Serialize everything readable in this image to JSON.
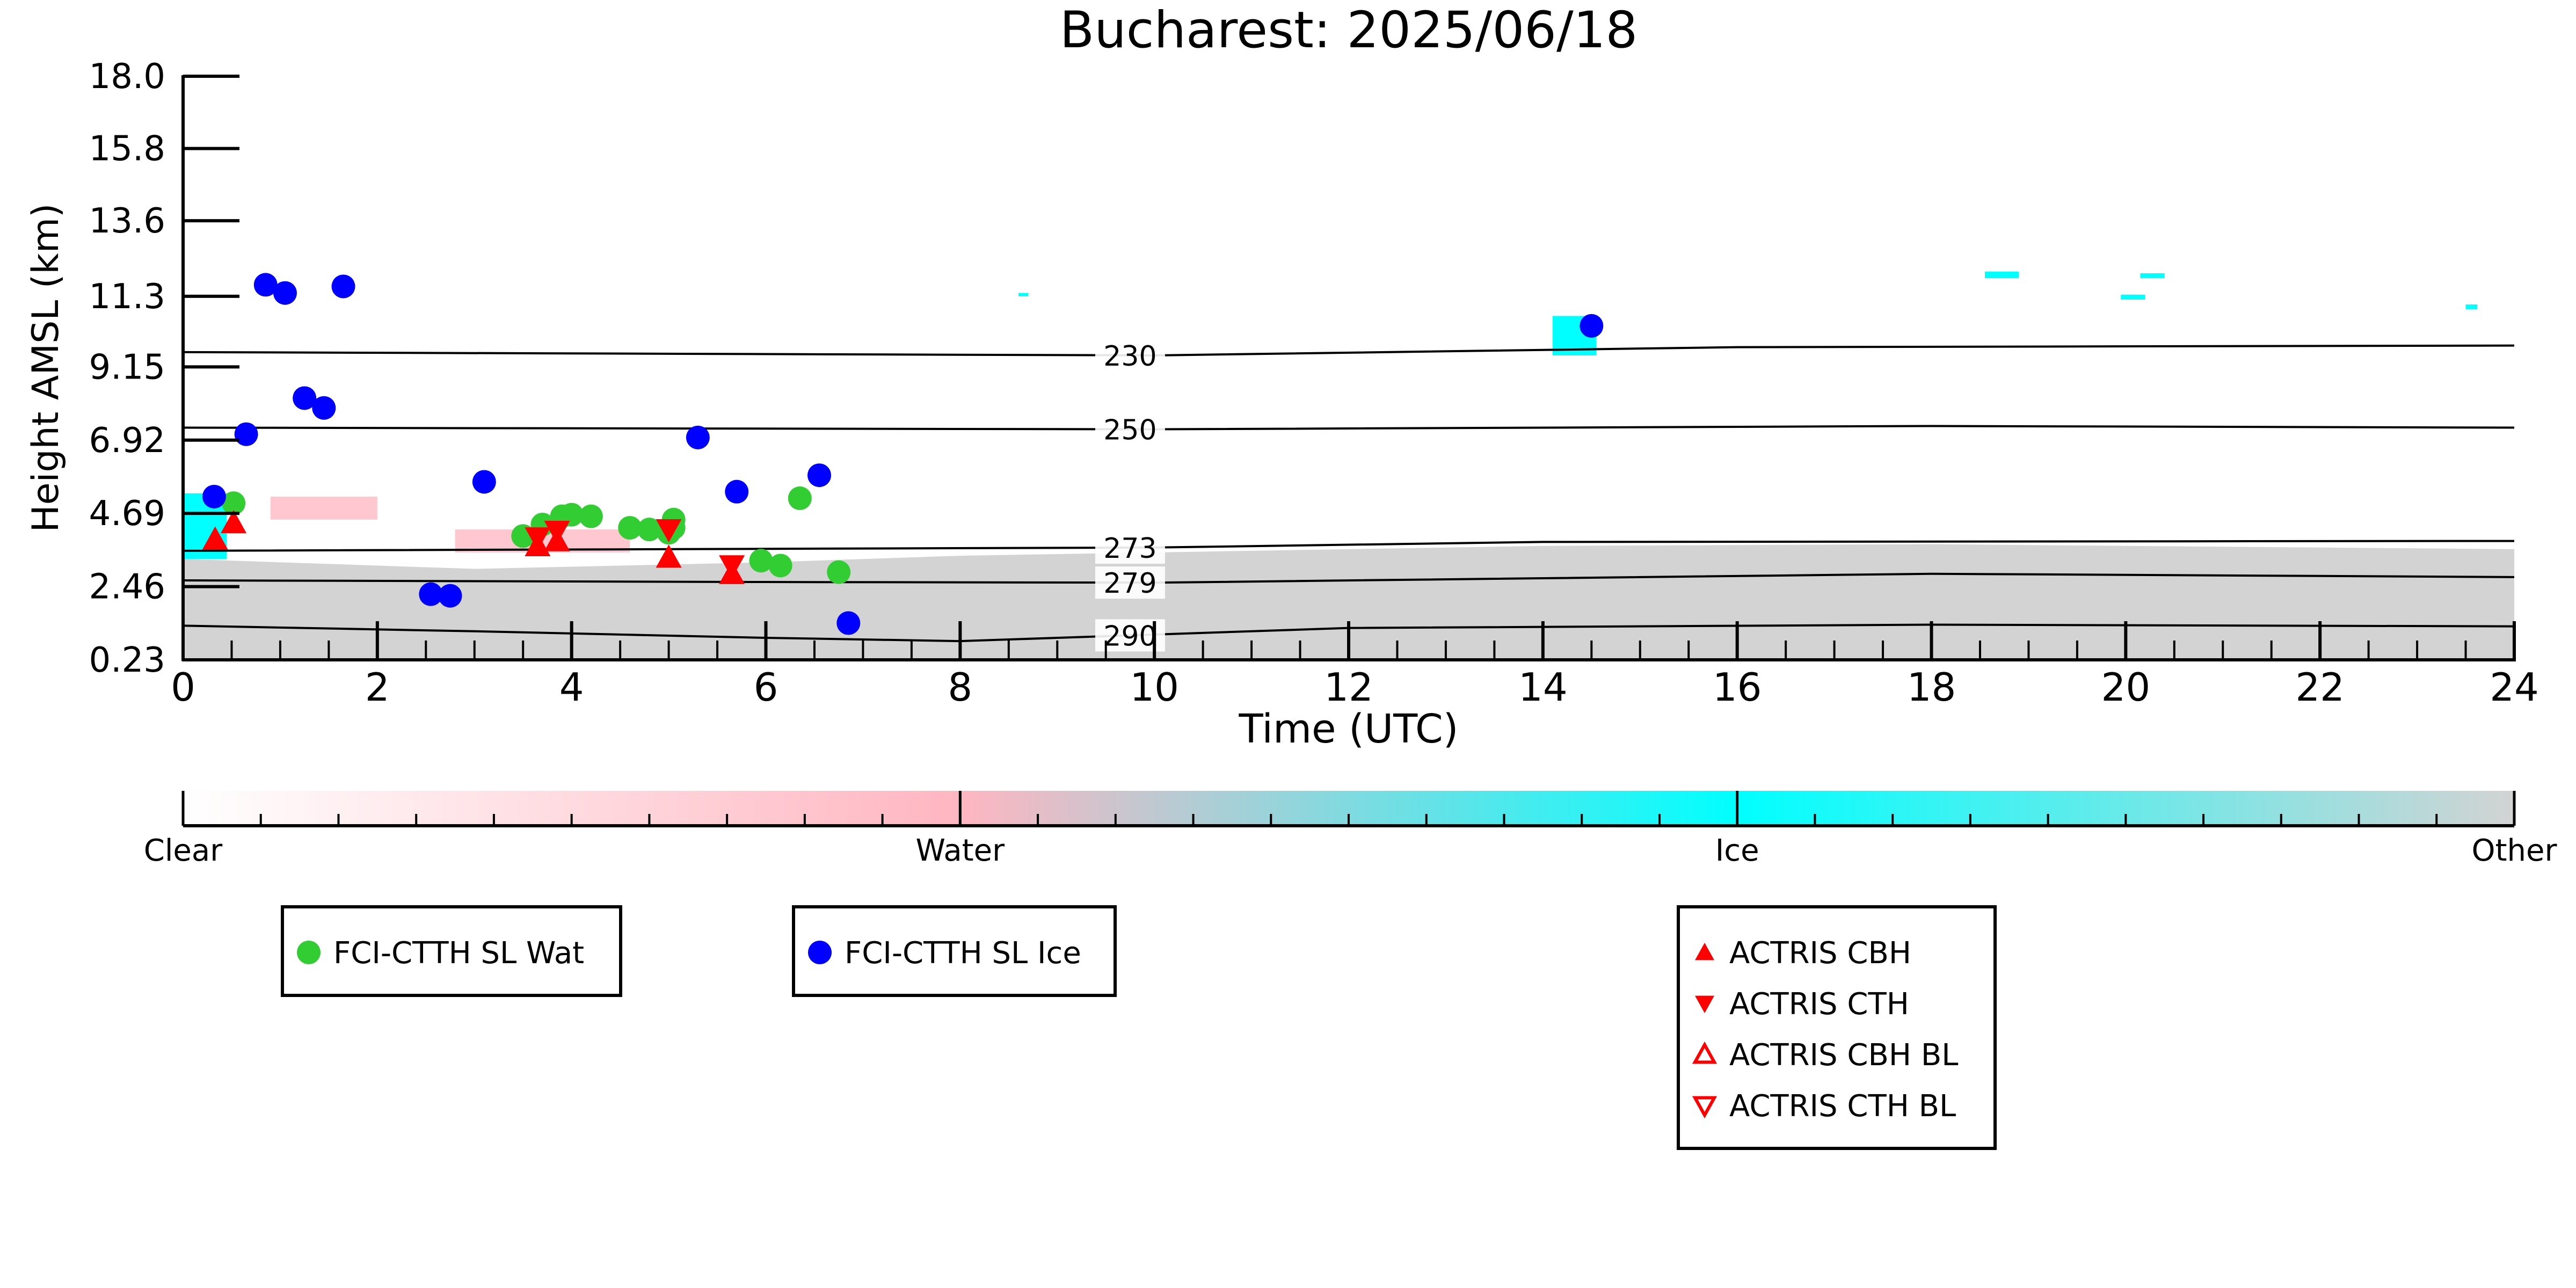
{
  "chart_data": {
    "type": "scatter",
    "title": "Bucharest: 2025/06/18",
    "xlabel": "Time (UTC)",
    "ylabel": "Height AMSL (km)",
    "xlim": [
      0,
      24
    ],
    "ylim": [
      0.23,
      18.0
    ],
    "xticks": [
      "0",
      "2",
      "4",
      "6",
      "8",
      "10",
      "12",
      "14",
      "16",
      "18",
      "20",
      "22",
      "24"
    ],
    "yticks": [
      "0.23",
      "2.46",
      "4.69",
      "6.92",
      "9.15",
      "11.3",
      "13.6",
      "15.8",
      "18.0"
    ],
    "grid": false,
    "colors": {
      "clear": "#ffffff",
      "water": "#ffb6c1",
      "ice": "#00ffff",
      "other": "#d3d3d3",
      "fci_wat": "#32cd32",
      "fci_ice": "#0000ff",
      "actris": "#ff0000"
    },
    "isotherms": [
      {
        "label": "230",
        "points": [
          [
            0,
            9.6
          ],
          [
            10,
            9.5
          ],
          [
            16,
            9.75
          ],
          [
            24,
            9.8
          ]
        ]
      },
      {
        "label": "250",
        "points": [
          [
            0,
            7.3
          ],
          [
            10,
            7.25
          ],
          [
            18,
            7.35
          ],
          [
            24,
            7.3
          ]
        ]
      },
      {
        "label": "273",
        "points": [
          [
            0,
            3.55
          ],
          [
            10,
            3.65
          ],
          [
            14,
            3.82
          ],
          [
            24,
            3.85
          ]
        ]
      },
      {
        "label": "279",
        "points": [
          [
            0,
            2.65
          ],
          [
            6,
            2.6
          ],
          [
            10,
            2.58
          ],
          [
            18,
            2.85
          ],
          [
            24,
            2.75
          ]
        ]
      },
      {
        "label": "290",
        "points": [
          [
            0,
            1.27
          ],
          [
            3,
            1.1
          ],
          [
            6,
            0.9
          ],
          [
            8,
            0.8
          ],
          [
            12,
            1.2
          ],
          [
            18,
            1.3
          ],
          [
            24,
            1.25
          ]
        ]
      }
    ],
    "series": [
      {
        "name": "FCI-CTTH SL Wat",
        "marker": "circle",
        "color": "#32cd32",
        "x": [
          0.52,
          3.5,
          3.7,
          3.9,
          4.0,
          4.2,
          4.6,
          4.8,
          5.0,
          5.05,
          5.05,
          5.95,
          6.15,
          6.35,
          6.75
        ],
        "y": [
          5.0,
          4.0,
          4.35,
          4.6,
          4.65,
          4.6,
          4.25,
          4.2,
          4.1,
          4.25,
          4.5,
          3.25,
          3.1,
          5.15,
          2.9
        ]
      },
      {
        "name": "FCI-CTTH SL Ice",
        "marker": "circle",
        "color": "#0000ff",
        "x": [
          0.32,
          0.65,
          0.85,
          1.05,
          1.25,
          1.45,
          1.65,
          2.55,
          2.75,
          3.1,
          5.3,
          5.7,
          6.55,
          6.85,
          14.5
        ],
        "y": [
          5.2,
          7.1,
          11.65,
          11.4,
          8.2,
          7.9,
          11.6,
          2.23,
          2.18,
          5.65,
          7.0,
          5.35,
          5.85,
          1.35,
          10.4
        ]
      },
      {
        "name": "ACTRIS CBH",
        "marker": "triangle-up",
        "color": "#ff0000",
        "x": [
          0.33,
          0.52,
          3.65,
          3.85,
          5.0,
          5.65
        ],
        "y": [
          3.9,
          4.4,
          3.7,
          3.85,
          3.35,
          2.85
        ]
      },
      {
        "name": "ACTRIS CTH",
        "marker": "triangle-down",
        "color": "#ff0000",
        "x": [
          3.65,
          3.85,
          5.0,
          5.65
        ],
        "y": [
          3.95,
          4.15,
          4.2,
          3.1
        ]
      },
      {
        "name": "ACTRIS CBH BL",
        "marker": "triangle-up-open",
        "color": "#ff0000",
        "x": [],
        "y": []
      },
      {
        "name": "ACTRIS CTH BL",
        "marker": "triangle-down-open",
        "color": "#ff0000",
        "x": [],
        "y": []
      }
    ],
    "cloud_regions": [
      {
        "class": "other",
        "x": [
          0,
          24
        ],
        "y_bottom": 0.23,
        "y_top_points": [
          [
            0,
            3.3
          ],
          [
            3,
            3.0
          ],
          [
            6,
            3.2
          ],
          [
            8,
            3.4
          ],
          [
            10,
            3.5
          ],
          [
            12,
            3.6
          ],
          [
            14,
            3.7
          ],
          [
            18,
            3.75
          ],
          [
            24,
            3.6
          ]
        ]
      },
      {
        "class": "ice",
        "x": [
          0.0,
          0.45
        ],
        "y": [
          3.3,
          5.3
        ]
      },
      {
        "class": "ice",
        "x": [
          14.1,
          14.55
        ],
        "y": [
          9.5,
          10.7
        ]
      },
      {
        "class": "ice",
        "x": [
          18.55,
          18.9
        ],
        "y": [
          11.85,
          12.05
        ]
      },
      {
        "class": "ice",
        "x": [
          19.95,
          20.2
        ],
        "y": [
          11.2,
          11.35
        ]
      },
      {
        "class": "ice",
        "x": [
          20.15,
          20.4
        ],
        "y": [
          11.85,
          12.0
        ]
      },
      {
        "class": "ice",
        "x": [
          23.5,
          23.62
        ],
        "y": [
          10.9,
          11.05
        ]
      },
      {
        "class": "ice",
        "x": [
          8.6,
          8.7
        ],
        "y": [
          11.3,
          11.4
        ]
      },
      {
        "class": "water",
        "x": [
          0.9,
          2.0
        ],
        "y": [
          4.5,
          5.2
        ]
      },
      {
        "class": "water",
        "x": [
          2.8,
          4.6
        ],
        "y": [
          3.5,
          4.2
        ]
      }
    ],
    "colorbar": {
      "labels": [
        "Clear",
        "Water",
        "Ice",
        "Other"
      ],
      "stops": [
        "#ffffff",
        "#ffb6c1",
        "#00ffff",
        "#d3d3d3"
      ]
    },
    "legends": [
      {
        "entries": [
          "FCI-CTTH SL Wat"
        ]
      },
      {
        "entries": [
          "FCI-CTTH SL Ice"
        ]
      },
      {
        "entries": [
          "ACTRIS CBH",
          "ACTRIS CTH",
          "ACTRIS CBH BL",
          "ACTRIS CTH BL"
        ]
      }
    ]
  }
}
